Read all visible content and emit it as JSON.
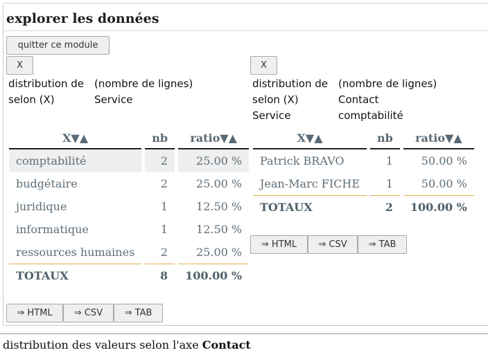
{
  "module": {
    "title": "explorer les données",
    "quit_label": "quitter ce module"
  },
  "left": {
    "close_label": "X",
    "dist_label": "distribution de",
    "dist_value": "(nombre de lignes)",
    "axis_label": "selon (X)",
    "axis_value": "Service",
    "headers": {
      "x": "X▼▲",
      "nb": "nb",
      "ratio": "ratio▼▲"
    },
    "rows": [
      {
        "x": "comptabilité",
        "nb": "2",
        "ratio": "25.00 %"
      },
      {
        "x": "budgétaire",
        "nb": "2",
        "ratio": "25.00 %"
      },
      {
        "x": "juridique",
        "nb": "1",
        "ratio": "12.50 %"
      },
      {
        "x": "informatique",
        "nb": "1",
        "ratio": "12.50 %"
      },
      {
        "x": "ressources humaines",
        "nb": "2",
        "ratio": "25.00 %"
      }
    ],
    "totals": {
      "x": "TOTAUX",
      "nb": "8",
      "ratio": "100.00 %"
    },
    "exports": {
      "html": "⇒ HTML",
      "csv": "⇒ CSV",
      "tab": "⇒ TAB"
    }
  },
  "right": {
    "close_label": "X",
    "dist_label": "distribution de",
    "dist_value": "(nombre de lignes)",
    "axis_label": "selon (X)",
    "axis_value": "Contact",
    "filter_label": "Service",
    "filter_value": "comptabilité",
    "headers": {
      "x": "X▼▲",
      "nb": "nb",
      "ratio": "ratio▼▲"
    },
    "rows": [
      {
        "x": "Patrick BRAVO",
        "nb": "1",
        "ratio": "50.00 %"
      },
      {
        "x": "Jean-Marc FICHE",
        "nb": "1",
        "ratio": "50.00 %"
      }
    ],
    "totals": {
      "x": "TOTAUX",
      "nb": "2",
      "ratio": "100.00 %"
    },
    "exports": {
      "html": "⇒ HTML",
      "csv": "⇒ CSV",
      "tab": "⇒ TAB"
    }
  },
  "footer": {
    "prefix": "distribution des valeurs selon l'axe ",
    "axis": "Contact"
  }
}
